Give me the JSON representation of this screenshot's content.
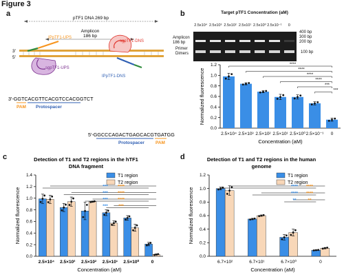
{
  "figure": {
    "title": "Figure 3",
    "panels": [
      "a",
      "b",
      "c",
      "d"
    ]
  },
  "panel_a": {
    "dna_label": "pTF1 DNA 269 bp",
    "amplicon_label": "Amplicon",
    "amplicon_size": "186 bp",
    "ip_ups_label": "IPpTF1-UPS",
    "sg_ups_label": "sgpTF1-UPS",
    "sg_dns_label": "sgpTF1-DNS",
    "ip_dns_label": "IPpTF1-DNS",
    "prime3": "3'",
    "prime5": "5'",
    "seq_top": "3'-GGTCACGTTCACGTCCACGGTCT",
    "seq_top_labels": [
      "PAM",
      "Protospacer"
    ],
    "seq_bottom": "5'-GGCCCAGACTGAGCACGTGATGG",
    "seq_bottom_labels": [
      "Protospacer",
      "PAM"
    ],
    "colors": {
      "ups": "#f7941d",
      "dns": "#2f5fb3",
      "sg_ups": "#7b2f8e",
      "sg_dns": "#e0352c",
      "green": "#2e8b3d"
    }
  },
  "panel_b": {
    "gel_title": "Target pTF1 Concentration (aM)",
    "lanes": [
      "2.5x10⁴",
      "2.5x10³",
      "2.5x10²",
      "2.5x10¹",
      "2.5x10⁰",
      "2.5x10⁻¹",
      "0"
    ],
    "markers": [
      "400 bp",
      "300 bp",
      "200 bp",
      "100 bp"
    ],
    "amplicon_label": "Amplicon\n186 bp",
    "primer_label": "Primer\nDimers",
    "significance": [
      "****",
      "****",
      "****",
      "****",
      "***",
      "***"
    ]
  },
  "panel_c": {
    "significance_blue": [
      "***",
      "***",
      "***",
      "***"
    ],
    "significance_orange": [
      "****",
      "****",
      "****",
      "***"
    ]
  },
  "panel_d": {
    "significance_blue": [
      "****",
      "****",
      "**"
    ],
    "significance_orange": [
      "****",
      "****",
      "**"
    ]
  },
  "chart_data": [
    {
      "id": "b",
      "type": "bar",
      "categories": [
        "2.5×10⁴",
        "2.5×10³",
        "2.5×10²",
        "2.5×10¹",
        "2.5×10⁰",
        "2.5×10⁻¹",
        "0"
      ],
      "series": [
        {
          "values": [
            0.98,
            0.84,
            0.69,
            0.59,
            0.59,
            0.47,
            0.16
          ],
          "errors": [
            0.06,
            0.02,
            0.02,
            0.05,
            0.04,
            0.03,
            0.03
          ],
          "color": "#3a8ee6"
        }
      ],
      "ylabel": "Normalized fluorescence",
      "xlabel": "Concentration (aM)",
      "ylim": [
        0,
        1.2
      ],
      "yticks": [
        0.0,
        0.2,
        0.4,
        0.6,
        0.8,
        1.0,
        1.2
      ]
    },
    {
      "id": "c",
      "type": "bar",
      "title": "Detection of T1 and T2 regions in the hTF1\nDNA fragment",
      "categories": [
        "2.5×10⁴",
        "2.5×10³",
        "2.5×10²",
        "2.5×10¹",
        "2.5×10⁰",
        "0"
      ],
      "series": [
        {
          "name": "T1 region",
          "values": [
            0.99,
            0.84,
            0.78,
            0.75,
            0.66,
            0.21
          ],
          "errors": [
            0.08,
            0.07,
            0.15,
            0.05,
            0.04,
            0.03
          ],
          "color": "#3a8ee6"
        },
        {
          "name": "T2 region",
          "values": [
            0.98,
            0.94,
            0.94,
            0.57,
            0.49,
            0.03
          ],
          "errors": [
            0.07,
            0.08,
            0.01,
            0.04,
            0.06,
            0.01
          ],
          "color": "#f8d7b8"
        }
      ],
      "ylabel": "Normalized fluorescence",
      "xlabel": "Concentration (aM)",
      "ylim": [
        0,
        1.4
      ],
      "yticks": [
        0.0,
        0.2,
        0.4,
        0.6,
        0.8,
        1.0,
        1.2,
        1.4
      ],
      "legend": "top-right"
    },
    {
      "id": "d",
      "type": "bar",
      "title": "Detection of T1 and T2 regions in the human\ngenome",
      "categories": [
        "6.7×10²",
        "6.7×10¹",
        "6.7×10⁰",
        "0"
      ],
      "series": [
        {
          "name": "T1 region",
          "values": [
            1.0,
            0.55,
            0.28,
            0.09
          ],
          "errors": [
            0.02,
            0.01,
            0.04,
            0.005
          ],
          "color": "#3a8ee6"
        },
        {
          "name": "T2 region",
          "values": [
            0.97,
            0.6,
            0.35,
            0.12
          ],
          "errors": [
            0.07,
            0.01,
            0.05,
            0.01
          ],
          "color": "#f8d7b8"
        }
      ],
      "ylabel": "Normalized fluorescence",
      "xlabel": "Concentration (aM)",
      "ylim": [
        0,
        1.2
      ],
      "yticks": [
        0.0,
        0.2,
        0.4,
        0.6,
        0.8,
        1.0,
        1.2
      ],
      "legend": "top-right"
    }
  ]
}
